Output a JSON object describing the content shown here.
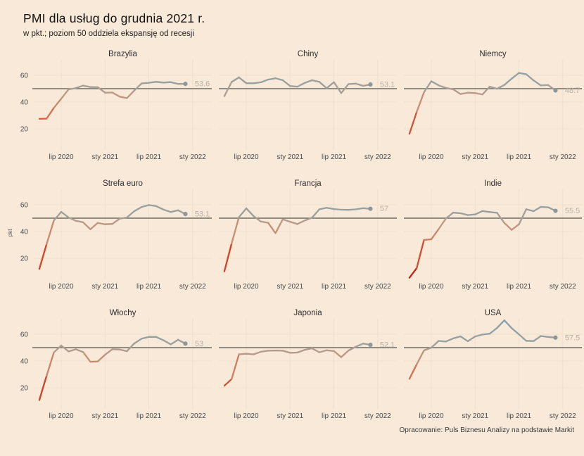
{
  "header": {
    "title": "PMI dla usług do grudnia 2021 r.",
    "subtitle": "w pkt.; poziom 50 oddziela ekspansję od recesji"
  },
  "footer": {
    "attribution": "Opracowanie: Puls Biznesu Analizy na podstawie Markit"
  },
  "colors": {
    "background": "#f9e9d9",
    "gridline": "#f0dfcb",
    "reference_line": "#6f6e65",
    "end_dot": "#8f9698",
    "end_label": "#b9b1a5",
    "panel_title": "#2e2e2e",
    "tick_label": "#4a4a4a",
    "value_color_stops": [
      {
        "value": 5,
        "color": [
          196,
          24,
          13
        ]
      },
      {
        "value": 20,
        "color": [
          209,
          63,
          40
        ]
      },
      {
        "value": 30,
        "color": [
          212,
          108,
          80
        ]
      },
      {
        "value": 40,
        "color": [
          201,
          140,
          112
        ]
      },
      {
        "value": 46,
        "color": [
          188,
          152,
          134
        ]
      },
      {
        "value": 50,
        "color": [
          169,
          158,
          149
        ]
      },
      {
        "value": 54,
        "color": [
          152,
          160,
          158
        ]
      },
      {
        "value": 60,
        "color": [
          145,
          161,
          165
        ]
      },
      {
        "value": 72,
        "color": [
          136,
          154,
          168
        ]
      }
    ]
  },
  "chart_data": {
    "type": "line",
    "y_axis_label": "pkt",
    "y_ticks": [
      60,
      40,
      20
    ],
    "ylim": [
      3,
      70
    ],
    "reference_line": 50,
    "x_ticks": [
      {
        "label": "lip 2020",
        "month_index": 3
      },
      {
        "label": "sty 2021",
        "month_index": 9
      },
      {
        "label": "lip 2021",
        "month_index": 15
      },
      {
        "label": "sty 2022",
        "month_index": 21
      }
    ],
    "months_note": "monthly values, kwi 2020 - gru 2021",
    "panels": [
      {
        "title": "Brazylia",
        "end_label": "53.6",
        "values": [
          27.4,
          27.6,
          35.7,
          42.5,
          49.5,
          50.4,
          52.3,
          51.2,
          51.1,
          47.0,
          47.1,
          44.1,
          42.9,
          48.6,
          53.9,
          54.4,
          55.1,
          54.6,
          54.9,
          53.6,
          53.6
        ]
      },
      {
        "title": "Chiny",
        "end_label": "53.1",
        "values": [
          44.4,
          55.0,
          58.4,
          54.1,
          54.0,
          54.8,
          56.8,
          57.8,
          56.3,
          52.0,
          51.5,
          54.3,
          56.3,
          55.1,
          50.3,
          54.9,
          46.7,
          53.4,
          53.8,
          52.1,
          53.1
        ]
      },
      {
        "title": "Niemcy",
        "end_label": "48.7",
        "values": [
          16.2,
          32.6,
          47.3,
          55.6,
          52.5,
          50.6,
          49.5,
          46.0,
          47.0,
          46.7,
          45.7,
          51.5,
          49.9,
          52.8,
          57.5,
          61.8,
          60.8,
          56.2,
          52.4,
          52.7,
          48.7
        ]
      },
      {
        "title": "Strefa euro",
        "end_label": "53.1",
        "values": [
          12.0,
          30.5,
          48.3,
          54.7,
          50.5,
          48.0,
          46.9,
          41.7,
          46.4,
          45.4,
          45.7,
          49.6,
          50.5,
          55.2,
          58.3,
          59.8,
          59.0,
          56.4,
          54.6,
          55.9,
          53.1
        ]
      },
      {
        "title": "Francja",
        "end_label": "57",
        "values": [
          10.2,
          31.1,
          50.7,
          57.3,
          51.5,
          47.5,
          46.5,
          38.8,
          49.1,
          47.3,
          45.6,
          48.2,
          50.3,
          56.6,
          57.8,
          56.8,
          56.3,
          56.2,
          56.6,
          57.4,
          57.0
        ]
      },
      {
        "title": "Indie",
        "end_label": "55.5",
        "values": [
          5.4,
          12.6,
          33.7,
          34.2,
          41.8,
          49.8,
          54.1,
          53.7,
          52.3,
          52.8,
          55.3,
          54.6,
          54.0,
          46.4,
          41.2,
          45.4,
          56.7,
          55.2,
          58.4,
          58.1,
          55.5
        ]
      },
      {
        "title": "Włochy",
        "end_label": "53",
        "values": [
          10.8,
          28.9,
          46.4,
          51.6,
          47.1,
          48.8,
          46.7,
          39.4,
          39.7,
          44.7,
          48.8,
          48.6,
          47.3,
          53.1,
          56.7,
          58.0,
          58.0,
          55.5,
          52.4,
          55.9,
          53.0
        ]
      },
      {
        "title": "Japonia",
        "end_label": "52.1",
        "values": [
          21.5,
          26.5,
          45.0,
          45.4,
          45.0,
          46.9,
          47.7,
          47.8,
          47.7,
          46.1,
          46.3,
          48.3,
          49.5,
          46.5,
          48.0,
          47.4,
          42.9,
          47.8,
          50.7,
          53.0,
          52.1
        ]
      },
      {
        "title": "USA",
        "end_label": "57.5",
        "values": [
          26.7,
          37.5,
          47.9,
          50.0,
          55.0,
          54.6,
          56.9,
          58.4,
          54.8,
          58.3,
          59.8,
          60.4,
          64.7,
          70.4,
          64.6,
          59.9,
          55.1,
          54.9,
          58.7,
          58.0,
          57.5
        ]
      }
    ]
  }
}
